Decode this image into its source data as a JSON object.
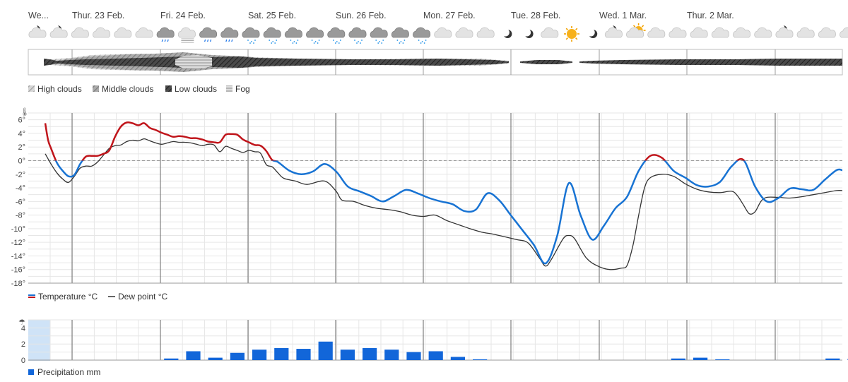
{
  "days": [
    "We...",
    "Thur. 23 Feb.",
    "Fri. 24 Feb.",
    "Sat. 25 Feb.",
    "Sun. 26 Feb.",
    "Mon. 27 Feb.",
    "Tue. 28 Feb.",
    "Wed. 1 Mar.",
    "Thur. 2 Mar."
  ],
  "weather_icons": [
    "cloud-moon",
    "cloud-moon",
    "cloud",
    "cloud",
    "cloud",
    "cloud",
    "cloud-rain",
    "cloud-fog",
    "cloud-drizzle",
    "cloud-drizzle",
    "cloud-snow",
    "cloud-snow",
    "cloud-snow",
    "cloud-snow",
    "cloud-snow",
    "cloud-snow",
    "cloud-snow",
    "cloud-snow",
    "cloud-snow",
    "cloud",
    "cloud",
    "cloud",
    "moon",
    "moon",
    "cloud",
    "sun",
    "moon",
    "cloud-moon",
    "cloud-sun",
    "cloud",
    "cloud",
    "cloud",
    "cloud",
    "cloud",
    "cloud",
    "cloud-moon",
    "cloud",
    "cloud",
    "cloud"
  ],
  "clouds_legend": [
    "High clouds",
    "Middle clouds",
    "Low clouds",
    "Fog"
  ],
  "temp_legend": [
    "Temperature °C",
    "Dew point °C"
  ],
  "precip_legend": "Precipitation mm",
  "colors": {
    "temp_above": "#c0151b",
    "temp_below": "#1873d3",
    "dew": "#333333",
    "precip": "#1266d9",
    "grid": "#d9d9d9",
    "day_line": "#666666"
  },
  "chart_data": [
    {
      "type": "line",
      "title": "",
      "ylabel_icon": "thermometer-icon",
      "ylim": [
        -18,
        7
      ],
      "y_ticks": [
        "6°",
        "4°",
        "2°",
        "0°",
        "-2°",
        "-4°",
        "-6°",
        "-8°",
        "-10°",
        "-12°",
        "-14°",
        "-16°",
        "-18°"
      ],
      "x_unit": "hours from first column",
      "series": [
        {
          "name": "Temperature °C",
          "points": [
            [
              0,
              5.5
            ],
            [
              0.5,
              3
            ],
            [
              1,
              1.8
            ],
            [
              2,
              -0.3
            ],
            [
              3,
              -1.5
            ],
            [
              4,
              -2.3
            ],
            [
              5,
              -2.1
            ],
            [
              6,
              -0.5
            ],
            [
              7,
              0.6
            ],
            [
              8,
              0.7
            ],
            [
              9,
              0.7
            ],
            [
              10,
              1
            ],
            [
              11,
              1.5
            ],
            [
              12,
              3.5
            ],
            [
              13,
              5
            ],
            [
              14,
              5.6
            ],
            [
              15,
              5.5
            ],
            [
              16,
              5.2
            ],
            [
              17,
              5.5
            ],
            [
              18,
              4.8
            ],
            [
              19,
              4.5
            ],
            [
              20,
              4.1
            ],
            [
              21,
              3.8
            ],
            [
              22,
              3.5
            ],
            [
              23,
              3.6
            ],
            [
              24,
              3.5
            ],
            [
              25,
              3.3
            ],
            [
              26,
              3.3
            ],
            [
              27,
              3.1
            ],
            [
              28,
              2.8
            ],
            [
              29,
              2.7
            ],
            [
              30,
              2.7
            ],
            [
              31,
              3.8
            ],
            [
              32,
              3.9
            ],
            [
              33,
              3.8
            ],
            [
              34,
              3.1
            ],
            [
              35,
              2.7
            ],
            [
              36,
              2.3
            ],
            [
              37,
              2.2
            ],
            [
              38,
              1.4
            ],
            [
              39,
              0.1
            ],
            [
              40,
              -0.2
            ],
            [
              42,
              -1.5
            ],
            [
              44,
              -2.0
            ],
            [
              46,
              -1.6
            ],
            [
              48,
              -0.5
            ],
            [
              50,
              -1.6
            ],
            [
              52,
              -3.8
            ],
            [
              54,
              -4.5
            ],
            [
              56,
              -5.2
            ],
            [
              58,
              -6
            ],
            [
              60,
              -5.2
            ],
            [
              62,
              -4.3
            ],
            [
              64,
              -4.8
            ],
            [
              66,
              -5.5
            ],
            [
              68,
              -6
            ],
            [
              70,
              -6.4
            ],
            [
              72,
              -7.4
            ],
            [
              74,
              -7.2
            ],
            [
              76,
              -4.8
            ],
            [
              78,
              -5.8
            ],
            [
              80,
              -8
            ],
            [
              82,
              -10.2
            ],
            [
              84,
              -12.4
            ],
            [
              86,
              -15.1
            ],
            [
              88,
              -11
            ],
            [
              90,
              -3.3
            ],
            [
              92,
              -8
            ],
            [
              94,
              -11.6
            ],
            [
              96,
              -9.6
            ],
            [
              98,
              -7
            ],
            [
              100,
              -5.3
            ],
            [
              102,
              -1.5
            ],
            [
              104,
              0.7
            ],
            [
              106,
              0.4
            ],
            [
              108,
              -1.5
            ],
            [
              110,
              -2.5
            ],
            [
              112,
              -3.6
            ],
            [
              114,
              -3.8
            ],
            [
              116,
              -3.1
            ],
            [
              118,
              -0.8
            ],
            [
              120,
              0.1
            ],
            [
              122,
              -3.8
            ],
            [
              124,
              -6
            ],
            [
              126,
              -5.5
            ],
            [
              128,
              -4.1
            ],
            [
              130,
              -4.2
            ],
            [
              132,
              -4.3
            ],
            [
              134,
              -2.8
            ],
            [
              136,
              -1.4
            ],
            [
              137,
              -1.4
            ]
          ]
        },
        {
          "name": "Dew point °C",
          "points": [
            [
              0,
              1
            ],
            [
              1,
              -0.5
            ],
            [
              2,
              -1.8
            ],
            [
              3,
              -2.7
            ],
            [
              4,
              -3.2
            ],
            [
              5,
              -2.3
            ],
            [
              6,
              -1.1
            ],
            [
              7,
              -0.8
            ],
            [
              8,
              -0.8
            ],
            [
              9,
              -0.2
            ],
            [
              10,
              0.8
            ],
            [
              11,
              1.8
            ],
            [
              12,
              2.2
            ],
            [
              13,
              2.3
            ],
            [
              14,
              2.8
            ],
            [
              15,
              3
            ],
            [
              16,
              2.9
            ],
            [
              17,
              3.2
            ],
            [
              18,
              2.9
            ],
            [
              19,
              2.6
            ],
            [
              20,
              2.4
            ],
            [
              21,
              2.6
            ],
            [
              22,
              2.8
            ],
            [
              23,
              2.7
            ],
            [
              24,
              2.7
            ],
            [
              25,
              2.6
            ],
            [
              26,
              2.4
            ],
            [
              27,
              2.2
            ],
            [
              28,
              2.4
            ],
            [
              29,
              2.3
            ],
            [
              30,
              1.3
            ],
            [
              31,
              2.1
            ],
            [
              32,
              1.8
            ],
            [
              33,
              1.5
            ],
            [
              34,
              1.2
            ],
            [
              35,
              1.5
            ],
            [
              36,
              1.3
            ],
            [
              37,
              1.1
            ],
            [
              38,
              -0.6
            ],
            [
              39,
              -0.9
            ],
            [
              40,
              -1.8
            ],
            [
              41,
              -2.6
            ],
            [
              43,
              -3
            ],
            [
              45,
              -3.5
            ],
            [
              48,
              -3
            ],
            [
              50,
              -4.5
            ],
            [
              51,
              -5.8
            ],
            [
              53,
              -6
            ],
            [
              55,
              -6.6
            ],
            [
              57,
              -7
            ],
            [
              59,
              -7.2
            ],
            [
              61,
              -7.5
            ],
            [
              63,
              -8
            ],
            [
              65,
              -8.2
            ],
            [
              67,
              -8
            ],
            [
              69,
              -8.8
            ],
            [
              71,
              -9.4
            ],
            [
              73,
              -10
            ],
            [
              75,
              -10.5
            ],
            [
              77,
              -10.8
            ],
            [
              79,
              -11.2
            ],
            [
              81,
              -11.6
            ],
            [
              83,
              -12.1
            ],
            [
              85,
              -14.4
            ],
            [
              86,
              -15.5
            ],
            [
              87,
              -14.5
            ],
            [
              89,
              -11.5
            ],
            [
              90,
              -11
            ],
            [
              91,
              -11.5
            ],
            [
              93,
              -14.3
            ],
            [
              95,
              -15.5
            ],
            [
              97,
              -16
            ],
            [
              99,
              -15.8
            ],
            [
              100,
              -15.4
            ],
            [
              101,
              -12.5
            ],
            [
              102,
              -8
            ],
            [
              103,
              -4
            ],
            [
              104,
              -2.5
            ],
            [
              106,
              -2
            ],
            [
              108,
              -2.3
            ],
            [
              110,
              -3.4
            ],
            [
              112,
              -4.2
            ],
            [
              114,
              -4.6
            ],
            [
              116,
              -4.7
            ],
            [
              118,
              -4.5
            ],
            [
              119,
              -5.2
            ],
            [
              120,
              -6.5
            ],
            [
              121,
              -7.8
            ],
            [
              122,
              -7.5
            ],
            [
              123,
              -6
            ],
            [
              124,
              -5.4
            ],
            [
              126,
              -5.4
            ],
            [
              128,
              -5.5
            ],
            [
              130,
              -5.3
            ],
            [
              132,
              -5
            ],
            [
              134,
              -4.7
            ],
            [
              136,
              -4.4
            ],
            [
              137,
              -4.4
            ]
          ]
        }
      ]
    },
    {
      "type": "bar",
      "title": "",
      "ylabel_icon": "umbrella-icon",
      "ylim": [
        0,
        5
      ],
      "y_ticks": [
        "4",
        "2",
        "0"
      ],
      "categories": [
        6,
        7,
        8,
        9,
        10,
        11,
        12,
        13,
        14,
        15,
        16,
        17,
        18,
        19,
        20,
        29,
        30,
        31,
        36,
        37
      ],
      "values": [
        0.2,
        1.1,
        0.3,
        0.9,
        1.3,
        1.5,
        1.4,
        2.3,
        1.3,
        1.5,
        1.3,
        1.0,
        1.1,
        0.4,
        0.1,
        0.2,
        0.3,
        0.1,
        0.2,
        0.15
      ],
      "bar_labels": []
    }
  ]
}
